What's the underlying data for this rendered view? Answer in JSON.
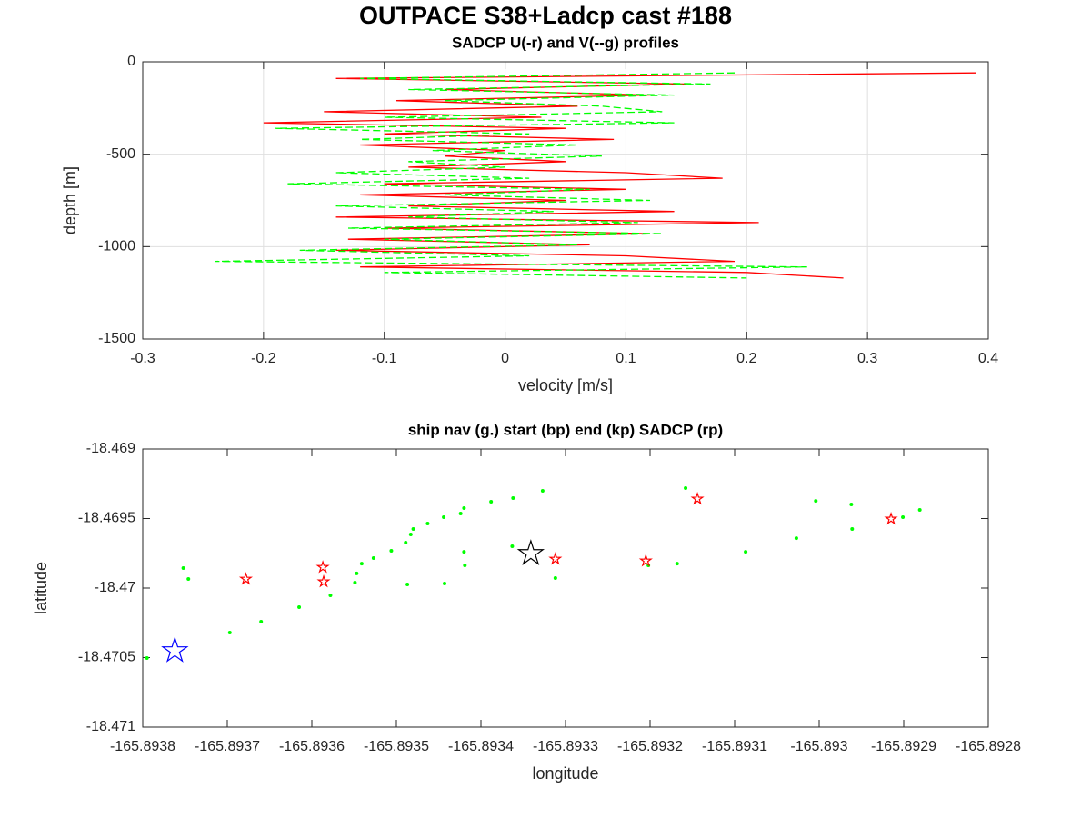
{
  "title": "OUTPACE S38+Ladcp cast #188",
  "chart_data": [
    {
      "type": "line",
      "title": "SADCP U(-r) and V(--g) profiles",
      "xlabel": "velocity [m/s]",
      "ylabel": "depth [m]",
      "xlim": [
        -0.3,
        0.4
      ],
      "xticks": [
        -0.3,
        -0.2,
        -0.1,
        0,
        0.1,
        0.2,
        0.3,
        0.4
      ],
      "ylim": [
        -1500,
        0
      ],
      "yticks": [
        -1500,
        -1000,
        -500,
        0
      ],
      "grid": true,
      "series": [
        {
          "color": "#ff0000",
          "linestyle": "-",
          "x": [
            0.39,
            -0.14,
            0.15,
            -0.05,
            0.12,
            -0.09,
            0.06,
            -0.15,
            0.03,
            -0.2,
            0.05,
            -0.1,
            0.09,
            -0.12,
            0.0,
            -0.05,
            0.05,
            -0.08,
            0.1,
            0.18,
            -0.1,
            0.1,
            -0.12,
            0.05,
            -0.08,
            0.14,
            -0.14,
            0.21,
            -0.1,
            0.12,
            -0.13,
            0.07,
            -0.14,
            0.1,
            0.19,
            -0.12,
            0.2,
            0.28
          ],
          "y": [
            -60,
            -90,
            -120,
            -150,
            -180,
            -210,
            -240,
            -270,
            -300,
            -330,
            -360,
            -390,
            -420,
            -450,
            -480,
            -510,
            -540,
            -570,
            -600,
            -630,
            -660,
            -690,
            -720,
            -750,
            -780,
            -810,
            -840,
            -870,
            -900,
            -930,
            -960,
            -990,
            -1020,
            -1050,
            -1080,
            -1110,
            -1140,
            -1170
          ]
        },
        {
          "color": "#00ff00",
          "linestyle": "--",
          "x": [
            0.19,
            -0.12,
            0.17,
            -0.08,
            0.14,
            -0.05,
            0.08,
            0.13,
            -0.1,
            0.14,
            -0.19,
            0.02,
            -0.12,
            0.06,
            -0.06,
            0.08,
            -0.08,
            0.0,
            -0.14,
            0.02,
            -0.18,
            0.07,
            -0.05,
            0.12,
            -0.14,
            0.04,
            -0.08,
            0.11,
            -0.13,
            0.13,
            -0.1,
            0.06,
            -0.17,
            0.02,
            -0.24,
            0.25,
            -0.1,
            0.2
          ],
          "y": [
            -60,
            -90,
            -120,
            -150,
            -180,
            -210,
            -240,
            -270,
            -300,
            -330,
            -360,
            -390,
            -420,
            -450,
            -480,
            -510,
            -540,
            -570,
            -600,
            -630,
            -660,
            -690,
            -720,
            -750,
            -780,
            -810,
            -840,
            -870,
            -900,
            -930,
            -960,
            -990,
            -1020,
            -1050,
            -1080,
            -1110,
            -1140,
            -1170
          ]
        }
      ]
    },
    {
      "type": "scatter",
      "title": "ship nav (g.) start (bp) end (kp) SADCP (rp)",
      "xlabel": "longitude",
      "ylabel": "latitude",
      "xlim": [
        -165.8938,
        -165.8928
      ],
      "xticks": [
        -165.8938,
        -165.8937,
        -165.8936,
        -165.8935,
        -165.8934,
        -165.8933,
        -165.8932,
        -165.8931,
        -165.893,
        -165.8929,
        -165.8928
      ],
      "ylim": [
        -18.471,
        -18.469
      ],
      "yticks": [
        -18.471,
        -18.4705,
        -18.47,
        -18.4695,
        -18.469
      ],
      "grid": false,
      "series": [
        {
          "color": "#00ff00",
          "marker": ".",
          "x": [
            -165.893795,
            -165.893752,
            -165.893746,
            -165.893697,
            -165.89366,
            -165.893615,
            -165.893578,
            -165.893549,
            -165.893547,
            -165.893541,
            -165.893527,
            -165.893506,
            -165.893489,
            -165.893483,
            -165.89348,
            -165.893463,
            -165.893444,
            -165.893424,
            -165.89342,
            -165.893388,
            -165.893362,
            -165.893327,
            -165.893487,
            -165.893443,
            -165.89342,
            -165.893419,
            -165.893363,
            -165.893312,
            -165.893202,
            -165.893168,
            -165.893158,
            -165.893087,
            -165.893027,
            -165.893004,
            -165.892962,
            -165.892961,
            -165.892901,
            -165.892881
          ],
          "y": [
            -18.470503,
            -18.469856,
            -18.469935,
            -18.47032,
            -18.470242,
            -18.470137,
            -18.470052,
            -18.469961,
            -18.469895,
            -18.469824,
            -18.469784,
            -18.469732,
            -18.469673,
            -18.469614,
            -18.469575,
            -18.469536,
            -18.46949,
            -18.469464,
            -18.469425,
            -18.469379,
            -18.469353,
            -18.469301,
            -18.469974,
            -18.469967,
            -18.469739,
            -18.469837,
            -18.469699,
            -18.469928,
            -18.469837,
            -18.469824,
            -18.469281,
            -18.469739,
            -18.469641,
            -18.469373,
            -18.469399,
            -18.469575,
            -18.46949,
            -18.469438
          ]
        },
        {
          "color": "#0000ff",
          "marker": "P",
          "x": [
            -165.893762
          ],
          "y": [
            -18.470451
          ]
        },
        {
          "color": "#000000",
          "marker": "P",
          "x": [
            -165.893341
          ],
          "y": [
            -18.469752
          ]
        },
        {
          "color": "#ff0000",
          "marker": "p",
          "x": [
            -165.893678,
            -165.893587,
            -165.893586,
            -165.893312,
            -165.893205,
            -165.893144,
            -165.892915
          ],
          "y": [
            -18.469935,
            -18.46985,
            -18.469954,
            -18.469791,
            -18.469804,
            -18.469359,
            -18.469503
          ]
        }
      ]
    }
  ]
}
